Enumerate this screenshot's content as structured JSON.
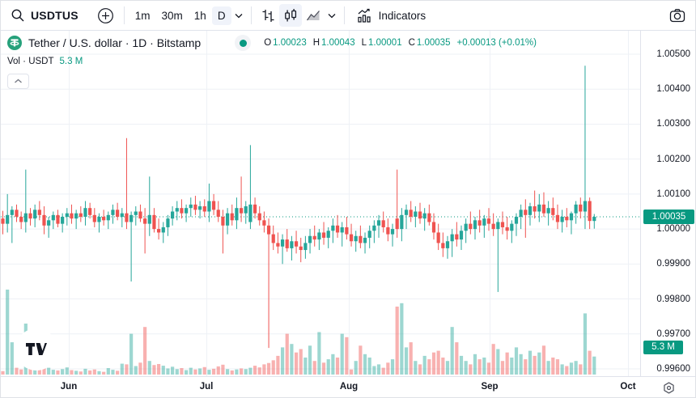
{
  "window": {
    "app": "TradingView chart"
  },
  "colors": {
    "up": "#26a69a",
    "down": "#ef5350",
    "vol_up": "rgba(38,166,154,0.45)",
    "vol_down": "rgba(239,83,80,0.45)",
    "accent_teal": "#089981",
    "badge_bg": "#089981",
    "grid": "#eef1f6",
    "border": "#e0e3eb",
    "text": "#131722",
    "tether_brand": "#26a17b"
  },
  "icons": {
    "search": "magnifier",
    "add_symbol": "circle-plus",
    "caret": "chevron-down",
    "bars_style": "ohlc-bars",
    "candles_style": "candlesticks",
    "area_style": "area-chart",
    "indicators": "chart-with-line",
    "snapshot": "camera",
    "settings": "gear-hexagon",
    "collapse": "chevron-up",
    "watermark": "tradingview-logo",
    "symbol_logo": "tether"
  },
  "toolbar": {
    "symbol": "USDTUS",
    "intervals": [
      {
        "label": "1m"
      },
      {
        "label": "30m"
      },
      {
        "label": "1h"
      },
      {
        "label": "D",
        "active": true
      }
    ],
    "indicators_label": "Indicators"
  },
  "legend": {
    "title": "Tether / U.S. dollar · 1D · Bitstamp",
    "o_label": "O",
    "o": "1.00023",
    "h_label": "H",
    "h": "1.00043",
    "l_label": "L",
    "l": "1.00001",
    "c_label": "C",
    "c": "1.00035",
    "change": "+0.00013 (+0.01%)",
    "vol_label": "Vol · USDT",
    "vol_value": "5.3 M"
  },
  "price_axis": {
    "ticks": [
      "1.00500",
      "1.00400",
      "1.00300",
      "1.00200",
      "1.00100",
      "1.00000",
      "0.99900",
      "0.99800",
      "0.99700",
      "0.99600"
    ],
    "current_price_label": "1.00035",
    "current_volume_label": "5.3 M"
  },
  "time_axis": {
    "labels": [
      "Jun",
      "Jul",
      "Aug",
      "Sep",
      "Oct"
    ]
  },
  "chart_data": {
    "type": "candlestick+volume",
    "symbol": "USDT/USD",
    "exchange": "Bitstamp",
    "interval": "1D",
    "price_range": [
      0.996,
      1.005
    ],
    "grid": true,
    "current_price": 1.00035,
    "current_volume_m": 5.3,
    "volume_unit": "M",
    "note": "candles are [open, high, low, close, volume_in_millions], one per day, left to right",
    "candles": [
      [
        1.0003,
        1.00052,
        0.99985,
        1.00015,
        1.0
      ],
      [
        1.00015,
        1.001,
        0.9999,
        1.0004,
        25.0
      ],
      [
        1.0004,
        1.00065,
        0.9996,
        1.00055,
        9.5
      ],
      [
        1.00055,
        1.0007,
        1.0002,
        1.00035,
        2.0
      ],
      [
        1.00035,
        1.0005,
        1.0,
        1.0002,
        1.5
      ],
      [
        1.0002,
        1.0017,
        0.9999,
        1.00045,
        15.0
      ],
      [
        1.00045,
        1.0006,
        1.0001,
        1.0003,
        1.8
      ],
      [
        1.0003,
        1.0007,
        1.00005,
        1.00055,
        2.2
      ],
      [
        1.00055,
        1.0008,
        1.00025,
        1.0004,
        7.8
      ],
      [
        1.0004,
        1.00065,
        0.99985,
        1.0001,
        8.5
      ],
      [
        1.0001,
        1.00035,
        0.99975,
        1.00025,
        2.0
      ],
      [
        1.00025,
        1.0005,
        1.0,
        1.0004,
        1.4
      ],
      [
        1.0004,
        1.00055,
        1.00005,
        1.00015,
        1.2
      ],
      [
        1.00015,
        1.00045,
        0.9999,
        1.00035,
        1.6
      ],
      [
        1.00035,
        1.0006,
        1.0001,
        1.00045,
        2.1
      ],
      [
        1.00045,
        1.0007,
        1.00015,
        1.0003,
        1.3
      ],
      [
        1.0003,
        1.00055,
        1.0,
        1.00045,
        1.1
      ],
      [
        1.00045,
        1.00065,
        1.0002,
        1.00035,
        0.9
      ],
      [
        1.00035,
        1.0008,
        1.0001,
        1.0006,
        1.7
      ],
      [
        1.0006,
        1.00075,
        1.0003,
        1.0004,
        1.2
      ],
      [
        1.0004,
        1.0006,
        1.00005,
        1.0002,
        1.5
      ],
      [
        1.0002,
        1.00045,
        0.9999,
        1.00035,
        1.0
      ],
      [
        1.00035,
        1.00055,
        1.0001,
        1.00025,
        0.8
      ],
      [
        1.00025,
        1.0005,
        1.0,
        1.0004,
        1.9
      ],
      [
        1.0004,
        1.0007,
        1.00015,
        1.00055,
        1.4
      ],
      [
        1.00055,
        1.00075,
        1.00025,
        1.00035,
        1.1
      ],
      [
        1.00035,
        1.0006,
        1.00005,
        1.00045,
        3.2
      ],
      [
        1.00045,
        1.0026,
        1.0,
        1.0002,
        3.0
      ],
      [
        1.0002,
        1.0005,
        0.9985,
        1.0004,
        12.0
      ],
      [
        1.0004,
        1.00065,
        1.0001,
        1.0005,
        2.5
      ],
      [
        1.0005,
        1.0007,
        1.0002,
        1.0003,
        3.5
      ],
      [
        1.0003,
        1.0006,
        0.9993,
        1.00015,
        14.0
      ],
      [
        1.00015,
        1.0015,
        0.9998,
        1.0004,
        4.0
      ],
      [
        1.0004,
        1.0006,
        0.9999,
        1.0,
        2.8
      ],
      [
        1.0,
        1.0003,
        0.9997,
        0.9999,
        3.1
      ],
      [
        0.9999,
        1.0002,
        0.9996,
        1.00005,
        2.6
      ],
      [
        1.00005,
        1.0004,
        0.9998,
        1.0003,
        1.8
      ],
      [
        1.0003,
        1.00065,
        1.0001,
        1.0005,
        2.3
      ],
      [
        1.0005,
        1.0008,
        1.00025,
        1.0006,
        1.6
      ],
      [
        1.0006,
        1.00085,
        1.0003,
        1.00045,
        1.9
      ],
      [
        1.00045,
        1.0007,
        1.0002,
        1.0006,
        1.3
      ],
      [
        1.0006,
        1.0009,
        1.00035,
        1.0007,
        2.0
      ],
      [
        1.0007,
        1.00095,
        1.0004,
        1.00055,
        1.5
      ],
      [
        1.00055,
        1.0008,
        1.0003,
        1.00065,
        1.8
      ],
      [
        1.00065,
        1.00085,
        1.00035,
        1.0005,
        2.2
      ],
      [
        1.0005,
        1.0013,
        1.0002,
        1.0008,
        1.4
      ],
      [
        1.0008,
        1.001,
        1.0004,
        1.00055,
        1.7
      ],
      [
        1.00055,
        1.0008,
        1.0002,
        1.00035,
        2.4
      ],
      [
        1.00035,
        1.00055,
        0.9993,
        1.0001,
        2.9
      ],
      [
        1.0001,
        1.0006,
        0.99985,
        1.00045,
        1.6
      ],
      [
        1.00045,
        1.0007,
        1.0001,
        1.00025,
        1.2
      ],
      [
        1.00025,
        1.0009,
        1.0,
        1.0006,
        1.5
      ],
      [
        1.0006,
        1.0015,
        1.0002,
        1.00045,
        1.8
      ],
      [
        1.00045,
        1.0008,
        1.00015,
        1.00065,
        1.6
      ],
      [
        1.0002,
        1.0024,
        1.0,
        1.0007,
        2.0
      ],
      [
        1.0007,
        1.0009,
        1.0003,
        1.00045,
        2.6
      ],
      [
        1.00045,
        1.00065,
        1.0001,
        1.00025,
        2.1
      ],
      [
        1.00025,
        1.0005,
        0.9999,
        1.0001,
        3.0
      ],
      [
        1.0001,
        1.0003,
        0.9966,
        0.99985,
        3.4
      ],
      [
        0.99985,
        1.0001,
        0.9994,
        0.9996,
        4.2
      ],
      [
        0.9996,
        0.9999,
        0.9993,
        0.9995,
        5.5
      ],
      [
        0.9995,
        0.99985,
        0.999,
        0.9997,
        8.0
      ],
      [
        0.9997,
        1.0,
        0.99935,
        0.99945,
        12.0
      ],
      [
        0.99945,
        0.9998,
        0.9991,
        0.99965,
        9.0
      ],
      [
        0.99965,
        0.99995,
        0.9993,
        0.9995,
        6.5
      ],
      [
        0.9995,
        0.99975,
        0.99905,
        0.9994,
        7.5
      ],
      [
        0.9994,
        0.9998,
        0.99915,
        0.9996,
        5.0
      ],
      [
        0.9996,
        1.0,
        0.9993,
        0.9998,
        8.5
      ],
      [
        0.9998,
        1.0001,
        0.9995,
        0.9997,
        4.0
      ],
      [
        0.9997,
        1.0,
        0.9994,
        0.9999,
        12.5
      ],
      [
        0.9999,
        1.0002,
        0.99955,
        0.99975,
        3.5
      ],
      [
        0.99975,
        1.00005,
        0.99945,
        0.99995,
        4.5
      ],
      [
        0.99995,
        1.0003,
        0.9996,
        1.0001,
        6.0
      ],
      [
        1.0001,
        1.0004,
        0.99975,
        0.9999,
        5.0
      ],
      [
        0.9999,
        1.0002,
        0.9995,
        1.00005,
        12.0
      ],
      [
        1.00005,
        1.00035,
        0.9997,
        0.99985,
        11.0
      ],
      [
        0.99985,
        1.00015,
        0.9995,
        0.99965,
        1.5
      ],
      [
        0.99965,
        0.99995,
        0.99935,
        0.9998,
        4.0
      ],
      [
        0.9998,
        1.0001,
        0.99945,
        0.9996,
        8.5
      ],
      [
        0.9996,
        0.9999,
        0.9993,
        0.99975,
        6.0
      ],
      [
        0.99975,
        1.0001,
        0.99945,
        0.99995,
        5.0
      ],
      [
        0.99995,
        1.00025,
        0.9996,
        1.0001,
        2.5
      ],
      [
        1.0001,
        1.0004,
        0.99975,
        1.00025,
        3.0
      ],
      [
        1.00025,
        1.0005,
        0.9999,
        1.00005,
        2.0
      ],
      [
        1.00005,
        1.0003,
        0.99965,
        0.99985,
        3.5
      ],
      [
        0.99985,
        1.00015,
        0.9995,
        1.0,
        4.5
      ],
      [
        1.0003,
        1.0017,
        0.99975,
        1.0,
        20.0
      ],
      [
        1.0,
        1.0006,
        0.99965,
        1.0004,
        21.0
      ],
      [
        1.0004,
        1.0007,
        1.0,
        1.00055,
        8.0
      ],
      [
        1.00055,
        1.0008,
        1.0002,
        1.00035,
        9.5
      ],
      [
        1.00035,
        1.00065,
        1.00005,
        1.0005,
        4.0
      ],
      [
        1.0005,
        1.00075,
        1.00015,
        1.0003,
        3.0
      ],
      [
        1.0003,
        1.0006,
        0.99995,
        1.00045,
        5.5
      ],
      [
        1.00045,
        1.0007,
        1.0001,
        1.0002,
        4.5
      ],
      [
        1.0002,
        1.00045,
        0.9997,
        0.9999,
        6.5
      ],
      [
        0.9999,
        1.00015,
        0.9994,
        0.9996,
        7.0
      ],
      [
        0.9996,
        0.9999,
        0.9992,
        0.99945,
        5.0
      ],
      [
        0.99945,
        0.9998,
        0.99915,
        0.99965,
        4.0
      ],
      [
        0.99965,
        1.0,
        0.9992,
        0.99985,
        14.0
      ],
      [
        0.99985,
        1.0002,
        0.9995,
        0.9997,
        9.5
      ],
      [
        0.9997,
        1.0001,
        0.9994,
        0.99995,
        5.5
      ],
      [
        0.99995,
        1.0003,
        0.9996,
        1.00015,
        4.0
      ],
      [
        1.00015,
        1.0005,
        0.99985,
        1.0,
        3.0
      ],
      [
        1.0,
        1.00035,
        0.9997,
        1.00025,
        6.0
      ],
      [
        1.00025,
        1.00055,
        0.9999,
        1.0001,
        4.5
      ],
      [
        1.0001,
        1.0004,
        0.99975,
        1.0003,
        5.0
      ],
      [
        1.0003,
        1.0006,
        0.99995,
        1.00015,
        3.5
      ],
      [
        1.00015,
        1.00045,
        0.9998,
        1.0,
        9.0
      ],
      [
        1.0,
        1.0003,
        0.9982,
        1.0002,
        7.5
      ],
      [
        1.0002,
        1.0005,
        0.99985,
        1.00005,
        4.0
      ],
      [
        1.00005,
        1.00035,
        0.9997,
        0.99995,
        6.5
      ],
      [
        0.99995,
        1.00025,
        0.9996,
        1.00015,
        5.0
      ],
      [
        1.00015,
        1.00045,
        0.9998,
        1.00035,
        8.0
      ],
      [
        1.00035,
        1.0007,
        1.0,
        1.00055,
        6.0
      ],
      [
        1.00055,
        1.00085,
        0.99975,
        1.0004,
        4.5
      ],
      [
        1.0004,
        1.00075,
        1.0001,
        1.00065,
        7.0
      ],
      [
        1.00065,
        1.0011,
        1.0003,
        1.0005,
        5.5
      ],
      [
        1.0005,
        1.001,
        1.0002,
        1.0007,
        6.5
      ],
      [
        1.0007,
        1.00105,
        1.00035,
        1.00045,
        8.5
      ],
      [
        1.00045,
        1.0008,
        1.0001,
        1.0006,
        4.0
      ],
      [
        1.0006,
        1.0009,
        1.00025,
        1.0004,
        5.0
      ],
      [
        1.0004,
        1.0007,
        1.0,
        1.0002,
        4.5
      ],
      [
        1.0002,
        1.00055,
        0.9999,
        1.00035,
        3.0
      ],
      [
        1.00035,
        1.0006,
        1.00005,
        1.00025,
        2.5
      ],
      [
        1.00025,
        1.0005,
        0.99985,
        1.00045,
        3.5
      ],
      [
        1.00045,
        1.0008,
        1.00015,
        1.0007,
        4.0
      ],
      [
        1.0007,
        1.0009,
        1.0003,
        1.0005,
        3.0
      ],
      [
        1.0005,
        1.00467,
        1.0,
        1.0008,
        18.0
      ],
      [
        1.0008,
        1.0009,
        1.0,
        1.00023,
        7.0
      ],
      [
        1.00023,
        1.00043,
        1.00001,
        1.00035,
        5.3
      ]
    ]
  }
}
